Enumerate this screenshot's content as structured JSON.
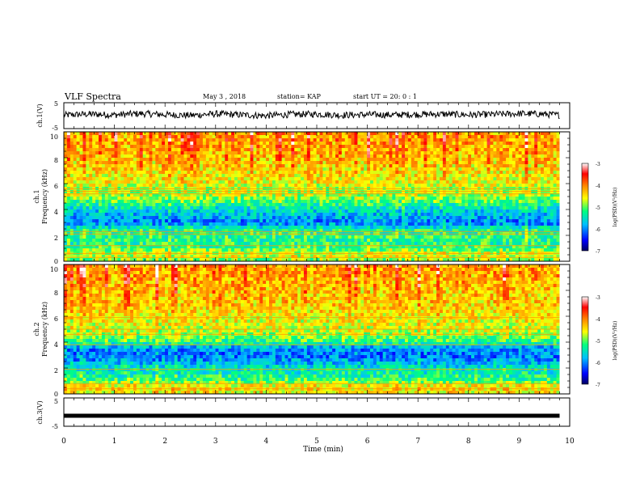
{
  "header": {
    "title": "VLF Spectra",
    "date": "May 3  , 2018",
    "station": "station= KAP",
    "start": "start  UT  =   20: 0  : 1"
  },
  "chart_data": [
    {
      "type": "line",
      "panel": "ch1-waveform",
      "ylabel": "ch.1(V)",
      "yticks": [
        "5",
        "-5"
      ],
      "ylim": [
        -5,
        5
      ],
      "xlim": [
        0,
        10
      ],
      "color": "#000000",
      "note_series": "noisy signal centered slightly above 0 V, amplitude about ±1.5 V",
      "x": [
        0,
        0.5,
        1,
        1.5,
        2,
        2.5,
        3,
        3.5,
        4,
        4.5,
        5,
        5.5,
        6,
        6.5,
        7,
        7.5,
        8,
        8.5,
        9,
        9.5,
        9.8
      ],
      "values": [
        0.2,
        0.6,
        0.3,
        0.8,
        0.4,
        0.1,
        0.7,
        0.3,
        0.0,
        0.5,
        0.6,
        0.2,
        0.4,
        0.3,
        0.5,
        0.6,
        0.3,
        0.5,
        0.8,
        0.6,
        0.2
      ]
    },
    {
      "type": "heatmap",
      "panel": "ch1-spectrogram",
      "ylabel_channel": "ch.1",
      "ylabel": "Frequency  (kHz)",
      "yticks": [
        "0",
        "2",
        "4",
        "6",
        "8",
        "10"
      ],
      "ylim": [
        0,
        10
      ],
      "xlim": [
        0,
        10
      ],
      "colorbar": {
        "label": "log(PSD)(V²/Hz)",
        "ticks": [
          "-3",
          "-4",
          "-5",
          "-6",
          "-7"
        ],
        "range": [
          -7,
          -3
        ],
        "colors": [
          "#000080",
          "#0000ff",
          "#00bfff",
          "#00ff80",
          "#ffff00",
          "#ff8000",
          "#ff0000",
          "#ffffff"
        ]
      },
      "freq_profile_kHz": [
        0,
        0.5,
        1,
        1.5,
        2,
        2.5,
        3,
        3.5,
        4,
        4.5,
        5,
        5.5,
        6,
        7,
        8,
        9,
        10
      ],
      "log_psd_profile": [
        -5.0,
        -4.6,
        -5.1,
        -5.3,
        -5.2,
        -5.4,
        -6.1,
        -5.8,
        -5.6,
        -5.2,
        -4.8,
        -4.8,
        -4.6,
        -4.5,
        -4.4,
        -4.3,
        -4.3
      ],
      "narrowband_lines_kHz": [
        0.3,
        0.6,
        1.2,
        2.1,
        2.3,
        5.2,
        5.4,
        5.6
      ]
    },
    {
      "type": "heatmap",
      "panel": "ch2-spectrogram",
      "ylabel_channel": "ch.2",
      "ylabel": "Frequency  (kHz)",
      "yticks": [
        "0",
        "2",
        "4",
        "6",
        "8",
        "10"
      ],
      "ylim": [
        0,
        10
      ],
      "xlim": [
        0,
        10
      ],
      "colorbar": {
        "label": "log(PSD)(V²/Hz)",
        "ticks": [
          "-3",
          "-4",
          "-5",
          "-6",
          "-7"
        ],
        "range": [
          -7,
          -3
        ],
        "colors": [
          "#000080",
          "#0000ff",
          "#00bfff",
          "#00ff80",
          "#ffff00",
          "#ff8000",
          "#ff0000",
          "#ffffff"
        ]
      },
      "freq_profile_kHz": [
        0,
        0.5,
        1,
        1.5,
        2,
        2.5,
        3,
        3.5,
        4,
        4.5,
        5,
        5.5,
        6,
        7,
        8,
        9,
        10
      ],
      "log_psd_profile": [
        -4.6,
        -4.4,
        -5.1,
        -5.4,
        -5.5,
        -5.9,
        -6.1,
        -6.0,
        -5.2,
        -4.9,
        -4.7,
        -4.6,
        -4.5,
        -4.4,
        -4.4,
        -4.3,
        -4.3
      ],
      "narrowband_lines_kHz": [
        0.4,
        0.8,
        1.9,
        3.8,
        4.6,
        5.0,
        5.9
      ]
    },
    {
      "type": "line",
      "panel": "ch3-waveform",
      "ylabel": "ch.3(V)",
      "yticks": [
        "5",
        "-5"
      ],
      "ylim": [
        -5,
        5
      ],
      "xlim": [
        0,
        10
      ],
      "color": "#000000",
      "x": [
        0,
        9.8
      ],
      "values": [
        -1.3,
        -1.3
      ]
    }
  ],
  "x_axis": {
    "label": "Time  (min)",
    "ticks": [
      "0",
      "1",
      "2",
      "3",
      "4",
      "5",
      "6",
      "7",
      "8",
      "9",
      "10"
    ]
  }
}
